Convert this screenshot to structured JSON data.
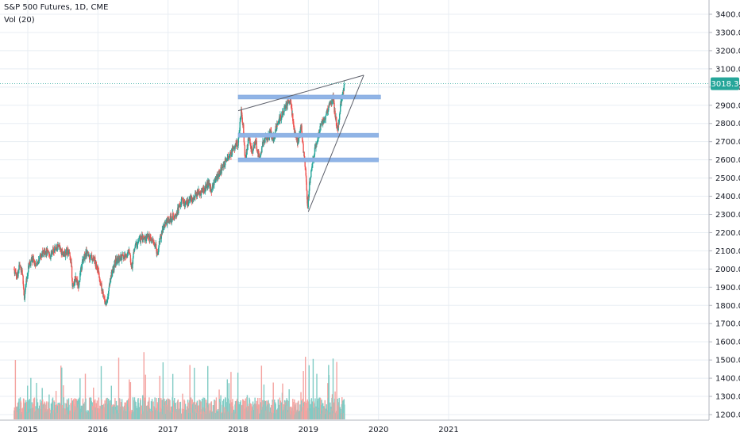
{
  "header": {
    "symbol": "S&P 500 Futures, 1D, CME",
    "volume_label": "Vol (20)"
  },
  "colors": {
    "up": "#26a69a",
    "down": "#ef5350",
    "vol_up": "#80cbc4",
    "vol_down": "#f4a3a0",
    "zone": "#90b4e6",
    "price_line": "#26a69a",
    "grid": "#e8eef3",
    "text": "#131722"
  },
  "chart_data": {
    "type": "candlestick",
    "title": "S&P 500 Futures, 1D, CME",
    "ylim": [
      1150,
      3450
    ],
    "y_ticks": [
      1200,
      1300,
      1400,
      1500,
      1600,
      1700,
      1800,
      1900,
      2000,
      2100,
      2200,
      2300,
      2400,
      2500,
      2600,
      2700,
      2800,
      2900,
      3000,
      3100,
      3200,
      3300,
      3400
    ],
    "y_tick_labels": [
      "1200.0",
      "1300.0",
      "1400.0",
      "1500.0",
      "1600.0",
      "1700.0",
      "1800.0",
      "1900.0",
      "2000.0",
      "2100.0",
      "2200.0",
      "2300.0",
      "2400.0",
      "2500.0",
      "2600.0",
      "2700.0",
      "2800.0",
      "2900.0",
      "3000.0",
      "3100.0",
      "3200.0",
      "3300.0",
      "3400.0"
    ],
    "x_ticks": [
      "2015",
      "2016",
      "2017",
      "2018",
      "2019",
      "2020",
      "2021"
    ],
    "x_tick_years": [
      2015,
      2016,
      2017,
      2018,
      2019,
      2020,
      2021
    ],
    "last_price": 3018.3,
    "last_price_label": "3018.3",
    "price_path": [
      [
        2014.8,
        2000
      ],
      [
        2014.85,
        1960
      ],
      [
        2014.88,
        2020
      ],
      [
        2014.92,
        1990
      ],
      [
        2014.95,
        1840
      ],
      [
        2014.98,
        1930
      ],
      [
        2015.02,
        2030
      ],
      [
        2015.08,
        2060
      ],
      [
        2015.12,
        2010
      ],
      [
        2015.18,
        2080
      ],
      [
        2015.25,
        2100
      ],
      [
        2015.32,
        2070
      ],
      [
        2015.38,
        2110
      ],
      [
        2015.45,
        2120
      ],
      [
        2015.52,
        2080
      ],
      [
        2015.57,
        2105
      ],
      [
        2015.62,
        2040
      ],
      [
        2015.64,
        1890
      ],
      [
        2015.68,
        1960
      ],
      [
        2015.72,
        1910
      ],
      [
        2015.78,
        2040
      ],
      [
        2015.83,
        2090
      ],
      [
        2015.88,
        2070
      ],
      [
        2015.95,
        2050
      ],
      [
        2016.0,
        1990
      ],
      [
        2016.05,
        1900
      ],
      [
        2016.08,
        1840
      ],
      [
        2016.12,
        1810
      ],
      [
        2016.18,
        1950
      ],
      [
        2016.25,
        2040
      ],
      [
        2016.32,
        2060
      ],
      [
        2016.4,
        2070
      ],
      [
        2016.45,
        2100
      ],
      [
        2016.48,
        2000
      ],
      [
        2016.52,
        2120
      ],
      [
        2016.6,
        2165
      ],
      [
        2016.7,
        2175
      ],
      [
        2016.78,
        2150
      ],
      [
        2016.82,
        2125
      ],
      [
        2016.85,
        2085
      ],
      [
        2016.88,
        2160
      ],
      [
        2016.95,
        2250
      ],
      [
        2017.05,
        2280
      ],
      [
        2017.15,
        2330
      ],
      [
        2017.2,
        2380
      ],
      [
        2017.25,
        2350
      ],
      [
        2017.3,
        2365
      ],
      [
        2017.4,
        2410
      ],
      [
        2017.5,
        2430
      ],
      [
        2017.58,
        2470
      ],
      [
        2017.62,
        2440
      ],
      [
        2017.7,
        2510
      ],
      [
        2017.8,
        2570
      ],
      [
        2017.9,
        2640
      ],
      [
        2018.0,
        2700
      ],
      [
        2018.04,
        2860
      ],
      [
        2018.07,
        2800
      ],
      [
        2018.1,
        2600
      ],
      [
        2018.15,
        2720
      ],
      [
        2018.2,
        2650
      ],
      [
        2018.25,
        2700
      ],
      [
        2018.3,
        2610
      ],
      [
        2018.35,
        2690
      ],
      [
        2018.4,
        2720
      ],
      [
        2018.45,
        2750
      ],
      [
        2018.5,
        2720
      ],
      [
        2018.55,
        2790
      ],
      [
        2018.6,
        2830
      ],
      [
        2018.68,
        2900
      ],
      [
        2018.72,
        2930
      ],
      [
        2018.75,
        2920
      ],
      [
        2018.8,
        2750
      ],
      [
        2018.85,
        2700
      ],
      [
        2018.9,
        2790
      ],
      [
        2018.93,
        2640
      ],
      [
        2018.96,
        2560
      ],
      [
        2018.99,
        2340
      ],
      [
        2019.02,
        2480
      ],
      [
        2019.08,
        2630
      ],
      [
        2019.12,
        2700
      ],
      [
        2019.18,
        2790
      ],
      [
        2019.25,
        2850
      ],
      [
        2019.32,
        2920
      ],
      [
        2019.35,
        2945
      ],
      [
        2019.38,
        2850
      ],
      [
        2019.42,
        2760
      ],
      [
        2019.45,
        2870
      ],
      [
        2019.48,
        2950
      ],
      [
        2019.52,
        3018.3
      ]
    ],
    "annotations": {
      "trend_upper": {
        "from": [
          2018.0,
          2870
        ],
        "to": [
          2019.79,
          3065
        ]
      },
      "trend_lower": {
        "from": [
          2019.0,
          2315
        ],
        "to": [
          2019.79,
          3065
        ]
      },
      "zones": [
        {
          "from": 2018.0,
          "to": 2020.03,
          "price": 2945
        },
        {
          "from": 2018.0,
          "to": 2020.0,
          "price": 2735
        },
        {
          "from": 2018.0,
          "to": 2020.0,
          "price": 2600
        }
      ]
    }
  }
}
